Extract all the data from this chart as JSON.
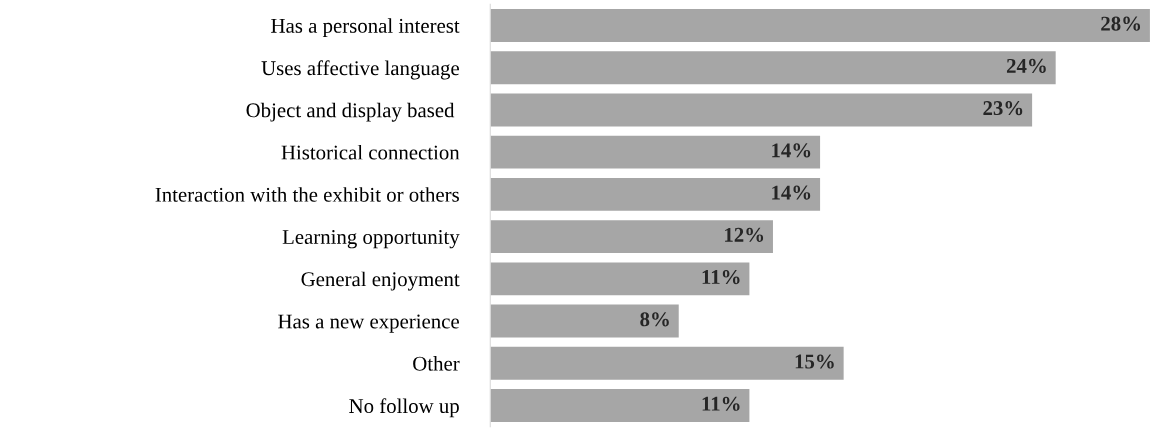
{
  "chart_data": {
    "type": "bar",
    "orientation": "horizontal",
    "categories": [
      "Has a personal interest",
      "Uses affective language",
      "Object and display based ",
      "Historical connection",
      "Interaction with the exhibit or others",
      "Learning opportunity",
      "General enjoyment",
      "Has a new experience",
      "Other",
      "No follow up"
    ],
    "values": [
      28,
      24,
      23,
      14,
      14,
      12,
      11,
      8,
      15,
      11
    ],
    "value_labels": [
      "28%",
      "24%",
      "23%",
      "14%",
      "14%",
      "12%",
      "11%",
      "8%",
      "15%",
      "11%"
    ],
    "color": "#a6a6a6",
    "grid": false,
    "legend": false
  }
}
